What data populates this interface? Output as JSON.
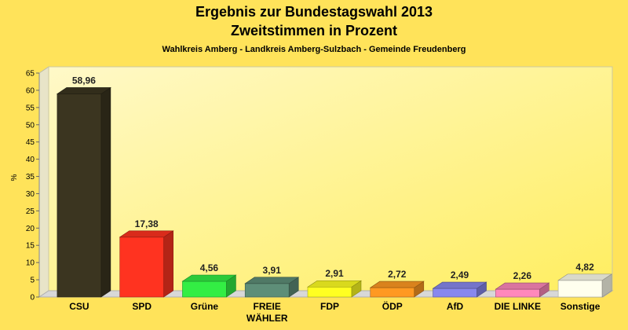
{
  "chart_data": {
    "type": "bar",
    "title": "Ergebnis zur Bundestagswahl 2013",
    "title2": "Zweitstimmen in Prozent",
    "subtitle": "Wahlkreis Amberg - Landkreis Amberg-Sulzbach - Gemeinde Freudenberg",
    "ylabel": "%",
    "xlabel": "",
    "ylim": [
      0,
      65
    ],
    "yticks": [
      0,
      5,
      10,
      15,
      20,
      25,
      30,
      35,
      40,
      45,
      50,
      55,
      60,
      65
    ],
    "grid": false,
    "categories": [
      "CSU",
      "SPD",
      "Grüne",
      "FREIE WÄHLER",
      "FDP",
      "ÖDP",
      "AfD",
      "DIE LINKE",
      "Sonstige"
    ],
    "category_lines": [
      [
        "CSU"
      ],
      [
        "SPD"
      ],
      [
        "Grüne"
      ],
      [
        "FREIE",
        "WÄHLER"
      ],
      [
        "FDP"
      ],
      [
        "ÖDP"
      ],
      [
        "AfD"
      ],
      [
        "DIE LINKE"
      ],
      [
        "Sonstige"
      ]
    ],
    "values": [
      58.96,
      17.38,
      4.56,
      3.91,
      2.91,
      2.72,
      2.49,
      2.26,
      4.82
    ],
    "value_labels": [
      "58,96",
      "17,38",
      "4,56",
      "3,91",
      "2,91",
      "2,72",
      "2,49",
      "2,26",
      "4,82"
    ],
    "colors": [
      "#3B3520",
      "#FF3320",
      "#33EE44",
      "#5E8E78",
      "#FFFF22",
      "#FF9922",
      "#8888EE",
      "#FF88BB",
      "#FFFFEE"
    ]
  }
}
